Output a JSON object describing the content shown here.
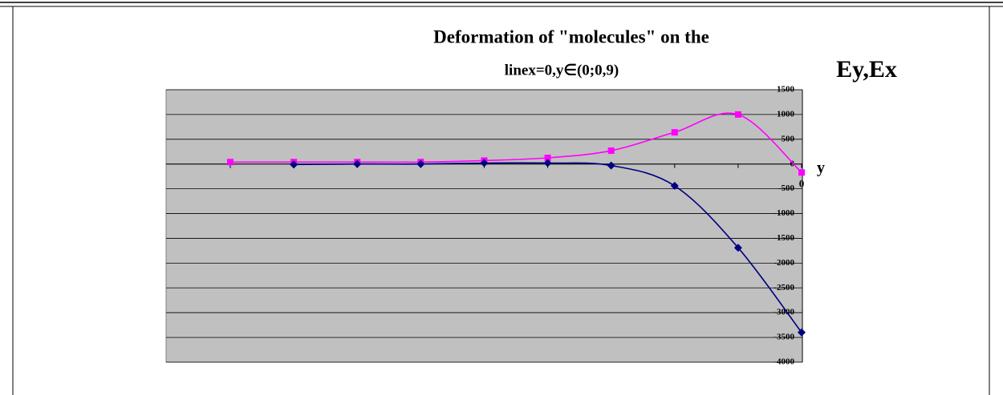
{
  "chart_data": {
    "type": "line",
    "title": "Deformation of \"molecules\" on the",
    "subtitle": "linex=0,y∈(0;0,9)",
    "y_label": "Ey,Ex",
    "x_label": "y",
    "categories": [
      null,
      null,
      null,
      null,
      null,
      null,
      null,
      null,
      null,
      "0"
    ],
    "series": [
      {
        "color": "#ff00ff",
        "marker": "square",
        "values": [
          40,
          40,
          40,
          40,
          70,
          125,
          270,
          640,
          1000,
          -170
        ]
      },
      {
        "color": "#000080",
        "marker": "diamond",
        "values": [
          null,
          -10,
          0,
          0,
          20,
          20,
          -30,
          -440,
          -1690,
          -3400
        ]
      }
    ],
    "ylim": [
      -4000,
      1500
    ],
    "yticks": [
      1500,
      1000,
      500,
      0,
      -500,
      -1000,
      -1500,
      -2000,
      -2500,
      -3000,
      -3500,
      -4000
    ],
    "grid": true,
    "plot_background": "#c0c0c0"
  }
}
